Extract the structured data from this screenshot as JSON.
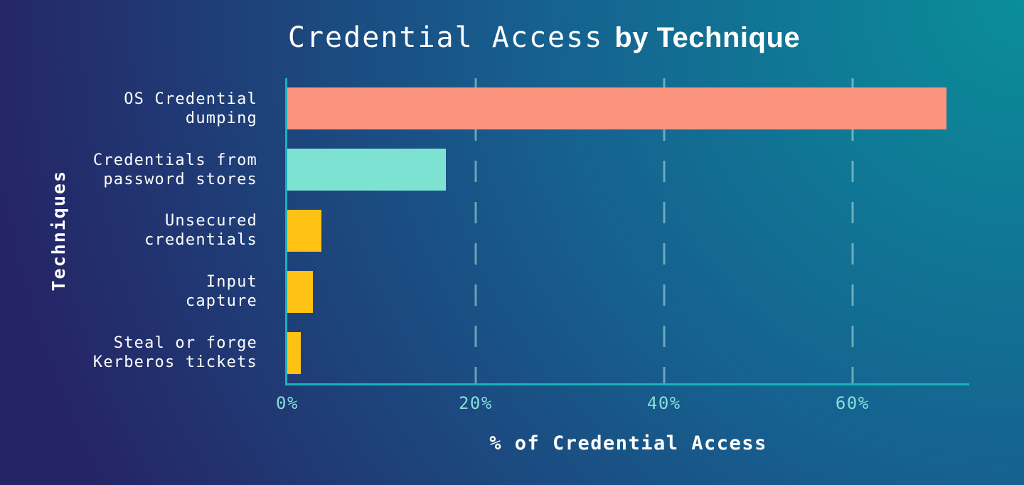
{
  "title": {
    "regular": "Credential Access",
    "bold": "by Technique"
  },
  "axes": {
    "x_title": "% of Credential Access",
    "y_title": "Techniques"
  },
  "chart_data": {
    "type": "bar",
    "orientation": "horizontal",
    "title": "Credential Access by Technique",
    "xlabel": "% of Credential Access",
    "ylabel": "Techniques",
    "categories": [
      "OS Credential dumping",
      "Credentials from password stores",
      "Unsecured credentials",
      "Input capture",
      "Steal or forge Kerberos tickets"
    ],
    "category_lines": [
      [
        "OS Credential",
        "dumping"
      ],
      [
        "Credentials from",
        "password stores"
      ],
      [
        "Unsecured",
        "credentials"
      ],
      [
        "Input",
        "capture"
      ],
      [
        "Steal or forge",
        "Kerberos tickets"
      ]
    ],
    "values": [
      70,
      16.8,
      3.6,
      2.7,
      1.4
    ],
    "unit": "%",
    "xlim": [
      0,
      72.4
    ],
    "tick_values": [
      0,
      20,
      40,
      60
    ],
    "tick_labels": [
      "0%",
      "20%",
      "40%",
      "60%"
    ],
    "gridline_values": [
      20,
      40,
      60
    ],
    "grid_style": "dashed-vertical",
    "legend": "none",
    "bar_colors": [
      "#fb947e",
      "#7de2d1",
      "#fec114",
      "#fec114",
      "#fec114"
    ],
    "colors": {
      "background_start": "#0a8e9b",
      "background_mid": "#16608f",
      "background_end": "#252566",
      "axis": "#17b3ba",
      "tick_label": "#86ded6",
      "gridline": "rgba(178,226,222,0.55)",
      "text": "#ffffff",
      "bar_salmon": "#fb947e",
      "bar_mint": "#7de2d1",
      "bar_yellow": "#fec114"
    }
  }
}
